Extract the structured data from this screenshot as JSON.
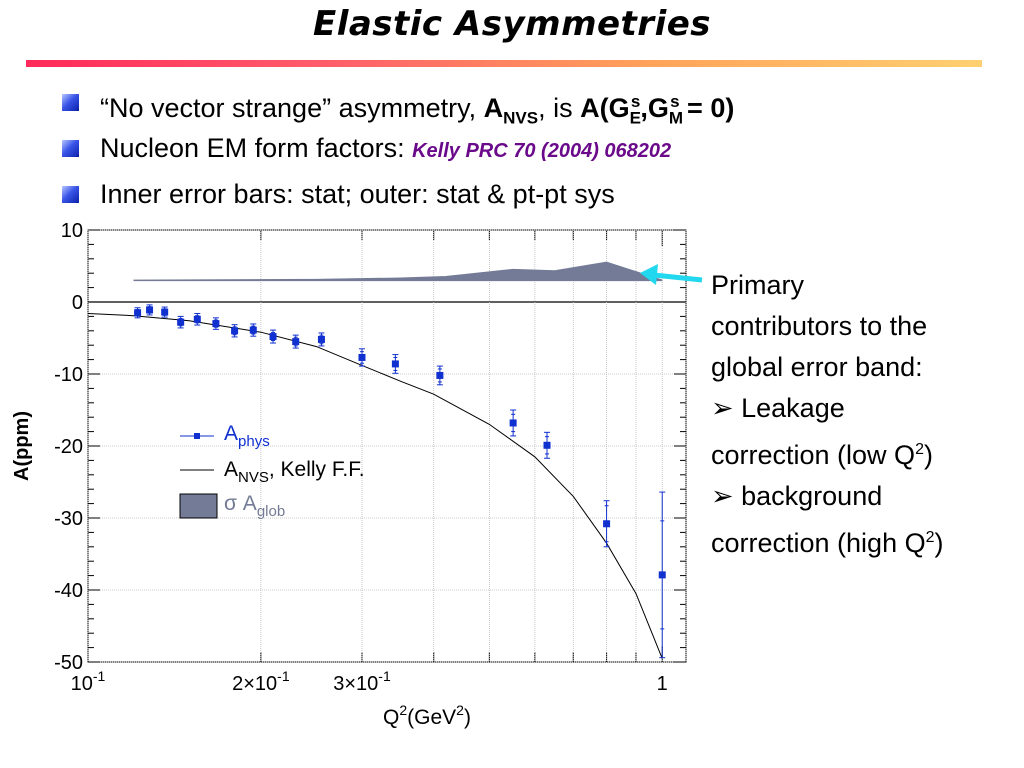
{
  "title": "Elastic Asymmetries",
  "bullets": {
    "b1_pre": "“No vector strange” asymmetry, ",
    "b1_A": "A",
    "b1_sub": "NVS",
    "b1_mid": ", is ",
    "b1_expr": "A(G",
    "b1_E": "E",
    "b1_s1": "s",
    "b1_comma": ",G",
    "b1_M": "M",
    "b1_s2": "s",
    "b1_end": " = 0)",
    "b2_text": "Nucleon EM form factors: ",
    "b2_ref": "Kelly PRC 70 (2004) 068202",
    "b3_text": "Inner error bars: stat; outer: stat & pt-pt sys"
  },
  "side_note": {
    "l1": "Primary",
    "l2": "contributors to the",
    "l3": "global error band:",
    "l4": "➢ Leakage",
    "l5_pre": "correction (low Q",
    "l5_sup": "2",
    "l5_post": ")",
    "l6": "➢ background",
    "l7_pre": "correction (high Q",
    "l7_sup": "2",
    "l7_post": ")"
  },
  "colors": {
    "data": "#1030d0",
    "band": "#737b96",
    "arrow": "#22d8ee",
    "curve": "#000000"
  },
  "chart_data": {
    "type": "scatter",
    "xlabel_base": "Q",
    "xlabel_sup1": "2",
    "xlabel_unit": "(GeV",
    "xlabel_sup2": "2",
    "xlabel_close": ")",
    "ylabel": "A(ppm)",
    "xscale": "log",
    "xlim": [
      0.1,
      1.1
    ],
    "ylim": [
      -50,
      10
    ],
    "yticks": [
      10,
      0,
      -10,
      -20,
      -30,
      -40,
      -50
    ],
    "xtick_labels": [
      {
        "x": 0.1,
        "base": "10",
        "sup": "-1"
      },
      {
        "x": 0.2,
        "base": "2×10",
        "sup": "-1"
      },
      {
        "x": 0.3,
        "base": "3×10",
        "sup": "-1"
      },
      {
        "x": 1.0,
        "base": "1",
        "sup": ""
      }
    ],
    "legend": {
      "phys_main": "A",
      "phys_sub": "phys",
      "nvs_main": "A",
      "nvs_sub": "NVS",
      "nvs_rest": ", Kelly F.F.",
      "glob_sigma": "σ A",
      "glob_sub": "glob"
    },
    "series_phys": [
      {
        "x": 0.122,
        "y": -1.5,
        "stat": 0.45,
        "sys": 0.7
      },
      {
        "x": 0.128,
        "y": -1.1,
        "stat": 0.45,
        "sys": 0.7
      },
      {
        "x": 0.136,
        "y": -1.4,
        "stat": 0.45,
        "sys": 0.7
      },
      {
        "x": 0.145,
        "y": -2.8,
        "stat": 0.5,
        "sys": 0.8
      },
      {
        "x": 0.155,
        "y": -2.4,
        "stat": 0.5,
        "sys": 0.8
      },
      {
        "x": 0.167,
        "y": -3.0,
        "stat": 0.5,
        "sys": 0.8
      },
      {
        "x": 0.18,
        "y": -4.0,
        "stat": 0.55,
        "sys": 0.85
      },
      {
        "x": 0.194,
        "y": -3.9,
        "stat": 0.55,
        "sys": 0.85
      },
      {
        "x": 0.21,
        "y": -4.8,
        "stat": 0.55,
        "sys": 0.9
      },
      {
        "x": 0.23,
        "y": -5.5,
        "stat": 0.6,
        "sys": 0.9
      },
      {
        "x": 0.255,
        "y": -5.2,
        "stat": 0.6,
        "sys": 0.9
      },
      {
        "x": 0.3,
        "y": -7.7,
        "stat": 0.8,
        "sys": 1.2
      },
      {
        "x": 0.343,
        "y": -8.6,
        "stat": 0.9,
        "sys": 1.3
      },
      {
        "x": 0.41,
        "y": -10.2,
        "stat": 0.9,
        "sys": 1.3
      },
      {
        "x": 0.55,
        "y": -16.8,
        "stat": 1.2,
        "sys": 1.8
      },
      {
        "x": 0.63,
        "y": -19.9,
        "stat": 1.2,
        "sys": 1.8
      },
      {
        "x": 0.8,
        "y": -30.8,
        "stat": 2.5,
        "sys": 3.2
      },
      {
        "x": 1.0,
        "y": -37.9,
        "stat": 7.5,
        "sys": 11.5
      }
    ],
    "series_nvs_curve": [
      {
        "x": 0.1,
        "y": -1.6
      },
      {
        "x": 0.12,
        "y": -1.9
      },
      {
        "x": 0.15,
        "y": -2.6
      },
      {
        "x": 0.2,
        "y": -4.2
      },
      {
        "x": 0.25,
        "y": -6.2
      },
      {
        "x": 0.3,
        "y": -8.8
      },
      {
        "x": 0.35,
        "y": -11.0
      },
      {
        "x": 0.4,
        "y": -12.8
      },
      {
        "x": 0.5,
        "y": -17.0
      },
      {
        "x": 0.6,
        "y": -21.5
      },
      {
        "x": 0.7,
        "y": -27.0
      },
      {
        "x": 0.8,
        "y": -33.5
      },
      {
        "x": 0.9,
        "y": -40.5
      },
      {
        "x": 1.0,
        "y": -49.5
      }
    ],
    "series_global_band": {
      "baseline": 3.0,
      "upper": [
        {
          "x": 0.12,
          "y": 3.0
        },
        {
          "x": 0.25,
          "y": 3.1
        },
        {
          "x": 0.35,
          "y": 3.3
        },
        {
          "x": 0.42,
          "y": 3.5
        },
        {
          "x": 0.55,
          "y": 4.5
        },
        {
          "x": 0.65,
          "y": 4.3
        },
        {
          "x": 0.8,
          "y": 5.5
        },
        {
          "x": 1.0,
          "y": 3.0
        }
      ]
    }
  }
}
